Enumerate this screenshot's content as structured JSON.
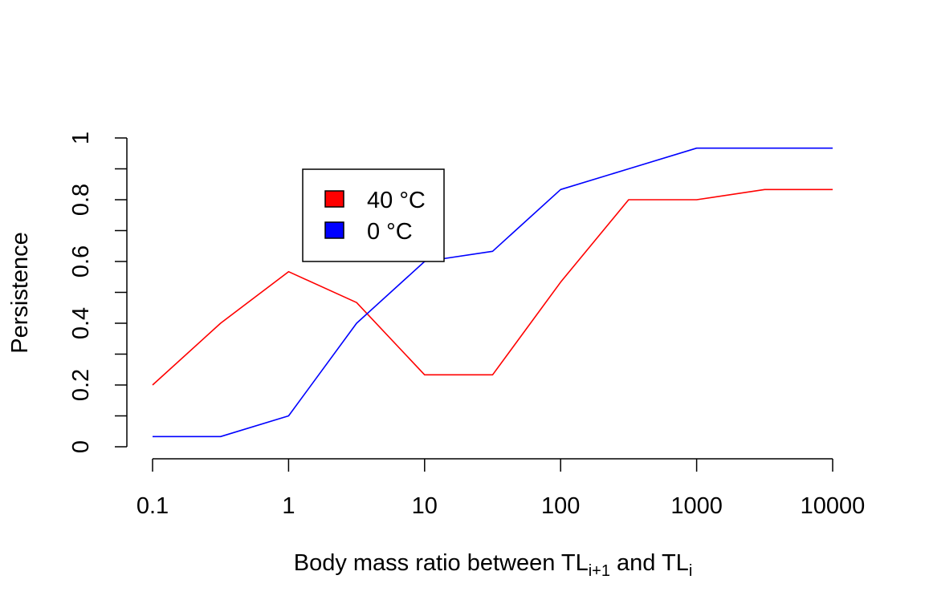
{
  "chart_data": {
    "type": "line",
    "xscale": "log",
    "x": [
      0.1,
      0.3162,
      1,
      3.162,
      10,
      31.62,
      100,
      316.2,
      1000,
      3162,
      10000
    ],
    "series": [
      {
        "name": "40 °C",
        "color": "#ff0000",
        "values": [
          0.2,
          0.4,
          0.567,
          0.467,
          0.233,
          0.233,
          0.533,
          0.8,
          0.8,
          0.833,
          0.833
        ]
      },
      {
        "name": "0 °C",
        "color": "#0000ff",
        "values": [
          0.033,
          0.033,
          0.1,
          0.4,
          0.6,
          0.633,
          0.833,
          0.9,
          0.967,
          0.967,
          0.967
        ]
      }
    ],
    "xticks": [
      0.1,
      1,
      10,
      100,
      1000,
      10000
    ],
    "xtick_labels": [
      "0.1",
      "1",
      "10",
      "100",
      "1000",
      "10000"
    ],
    "yticks": [
      0,
      0.2,
      0.4,
      0.6,
      0.8,
      1
    ],
    "ytick_labels": [
      "0",
      "0.2",
      "0.4",
      "0.6",
      "0.8",
      "1"
    ],
    "yminor": [
      0.1,
      0.3,
      0.5,
      0.7,
      0.9
    ],
    "xlim": [
      0.1,
      10000
    ],
    "ylim": [
      0,
      1
    ],
    "ylabel": "Persistence",
    "xlabel_parts": {
      "prefix": "Body mass ratio between TL",
      "sub1": "i+1",
      "middle": " and TL",
      "sub2": "i"
    },
    "legend_position": "top-left-inside",
    "grid": false
  }
}
